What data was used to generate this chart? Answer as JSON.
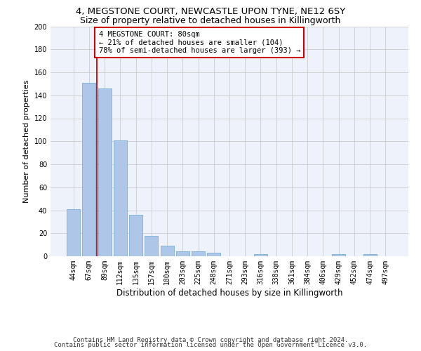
{
  "title1": "4, MEGSTONE COURT, NEWCASTLE UPON TYNE, NE12 6SY",
  "title2": "Size of property relative to detached houses in Killingworth",
  "xlabel": "Distribution of detached houses by size in Killingworth",
  "ylabel": "Number of detached properties",
  "bar_labels": [
    "44sqm",
    "67sqm",
    "89sqm",
    "112sqm",
    "135sqm",
    "157sqm",
    "180sqm",
    "203sqm",
    "225sqm",
    "248sqm",
    "271sqm",
    "293sqm",
    "316sqm",
    "338sqm",
    "361sqm",
    "384sqm",
    "406sqm",
    "429sqm",
    "452sqm",
    "474sqm",
    "497sqm"
  ],
  "bar_values": [
    41,
    151,
    146,
    101,
    36,
    18,
    9,
    4,
    4,
    3,
    0,
    0,
    2,
    0,
    0,
    0,
    0,
    2,
    0,
    2,
    0
  ],
  "bar_color": "#aec6e8",
  "bar_edge_color": "#7aafd4",
  "grid_color": "#cccccc",
  "background_color": "#eef2fb",
  "annotation_line1": "4 MEGSTONE COURT: 80sqm",
  "annotation_line2": "← 21% of detached houses are smaller (104)",
  "annotation_line3": "78% of semi-detached houses are larger (393) →",
  "annotation_box_color": "#cc0000",
  "red_line_x": 1.5,
  "ylim": [
    0,
    200
  ],
  "yticks": [
    0,
    20,
    40,
    60,
    80,
    100,
    120,
    140,
    160,
    180,
    200
  ],
  "footer1": "Contains HM Land Registry data © Crown copyright and database right 2024.",
  "footer2": "Contains public sector information licensed under the Open Government Licence v3.0.",
  "title1_fontsize": 9.5,
  "title2_fontsize": 9,
  "xlabel_fontsize": 8.5,
  "ylabel_fontsize": 8,
  "tick_fontsize": 7,
  "annotation_fontsize": 7.5,
  "footer_fontsize": 6.5
}
